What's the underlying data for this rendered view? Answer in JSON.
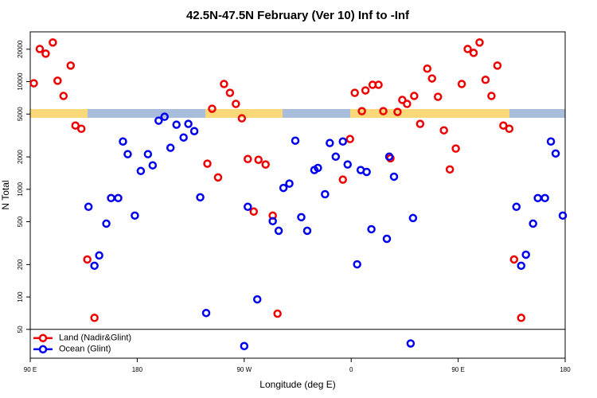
{
  "chart_data": {
    "type": "scatter",
    "title": "42.5N-47.5N February (Ver 10)   Inf to -Inf",
    "x_label": "Longitude (deg E)",
    "y_label": "N Total",
    "xlim": [
      90,
      540
    ],
    "xticks": [
      {
        "value": 90,
        "label": "90 E"
      },
      {
        "value": 180,
        "label": "180"
      },
      {
        "value": 270,
        "label": "90 W"
      },
      {
        "value": 360,
        "label": "0"
      },
      {
        "value": 450,
        "label": "90 E"
      },
      {
        "value": 540,
        "label": "180"
      }
    ],
    "ylim": [
      27,
      29000
    ],
    "yticks": [
      50,
      100,
      200,
      500,
      1000,
      2000,
      5000,
      10000,
      20000
    ],
    "log_y": true,
    "legend": "lower left",
    "series": [
      {
        "name": "Land (Nadir&Glint)",
        "color": "#ee0000",
        "x": [
          93,
          98,
          103,
          109,
          113,
          118,
          124,
          128,
          133,
          138,
          144,
          239,
          243,
          248,
          253,
          258,
          263,
          268,
          273,
          278,
          282,
          288,
          294,
          298,
          353,
          359,
          363,
          369,
          372,
          378,
          383,
          387,
          393,
          399,
          403,
          407,
          413,
          418,
          424,
          428,
          433,
          438,
          443,
          448,
          453,
          458,
          463,
          468,
          473,
          478,
          483,
          488,
          493,
          497,
          503
        ],
        "values": [
          9660,
          20100,
          18200,
          23100,
          10200,
          7360,
          14100,
          3910,
          3650,
          223,
          64,
          1730,
          5600,
          1290,
          9500,
          7870,
          6210,
          4560,
          1910,
          621,
          1880,
          1700,
          570,
          70,
          1230,
          2930,
          7870,
          5320,
          8290,
          9340,
          9340,
          5320,
          1940,
          5230,
          6760,
          6210,
          7360,
          4050,
          13200,
          10700,
          7230,
          3530,
          1530,
          2390,
          9500,
          20100,
          18500,
          23100,
          10400,
          7360,
          14100,
          3910,
          3650,
          223,
          64
        ]
      },
      {
        "name": "Ocean (Glint)",
        "color": "#0000ee",
        "x": [
          139,
          144,
          148,
          154,
          158,
          164,
          168,
          172,
          178,
          183,
          189,
          193,
          198,
          203,
          208,
          213,
          219,
          223,
          228,
          233,
          238,
          270,
          273,
          281,
          294,
          299,
          303,
          308,
          313,
          318,
          323,
          329,
          332,
          338,
          342,
          347,
          353,
          357,
          365,
          368,
          373,
          377,
          390,
          392,
          396,
          410,
          412,
          499,
          503,
          507,
          513,
          517,
          523,
          528,
          532,
          538
        ],
        "values": [
          688,
          195,
          243,
          480,
          829,
          829,
          2780,
          2120,
          570,
          1480,
          2120,
          1670,
          4340,
          4720,
          2430,
          3980,
          3030,
          4050,
          3470,
          843,
          71,
          35,
          688,
          95,
          506,
          412,
          1030,
          1130,
          2830,
          551,
          412,
          1510,
          1580,
          900,
          2690,
          2010,
          2780,
          1700,
          201,
          1510,
          1450,
          426,
          347,
          2010,
          1310,
          37,
          541,
          688,
          195,
          247,
          480,
          829,
          829,
          2780,
          2150,
          570
        ]
      }
    ]
  }
}
